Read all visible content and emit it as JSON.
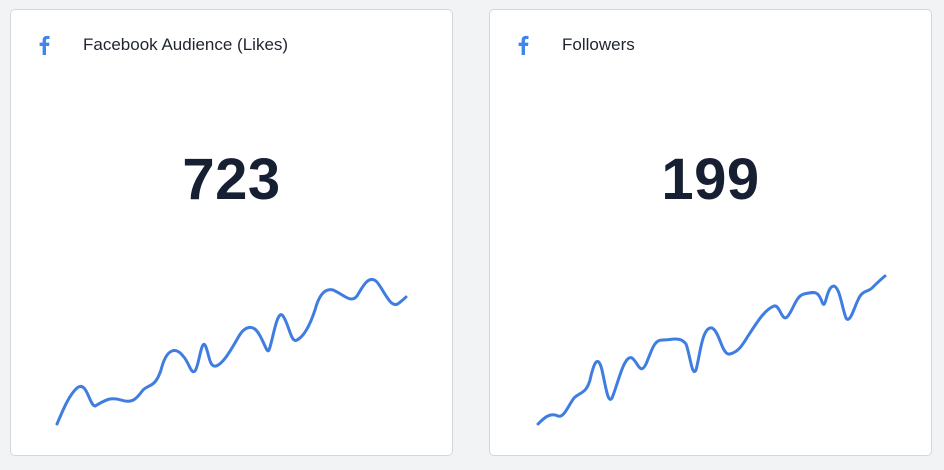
{
  "colors": {
    "facebook_blue": "#4285e8",
    "line_blue": "#3f7de0",
    "value_text": "#172033"
  },
  "cards": [
    {
      "title": "Facebook Audience (Likes)",
      "icon": "facebook-icon",
      "value": "723"
    },
    {
      "title": "Followers",
      "icon": "facebook-icon",
      "value": "199"
    }
  ]
}
